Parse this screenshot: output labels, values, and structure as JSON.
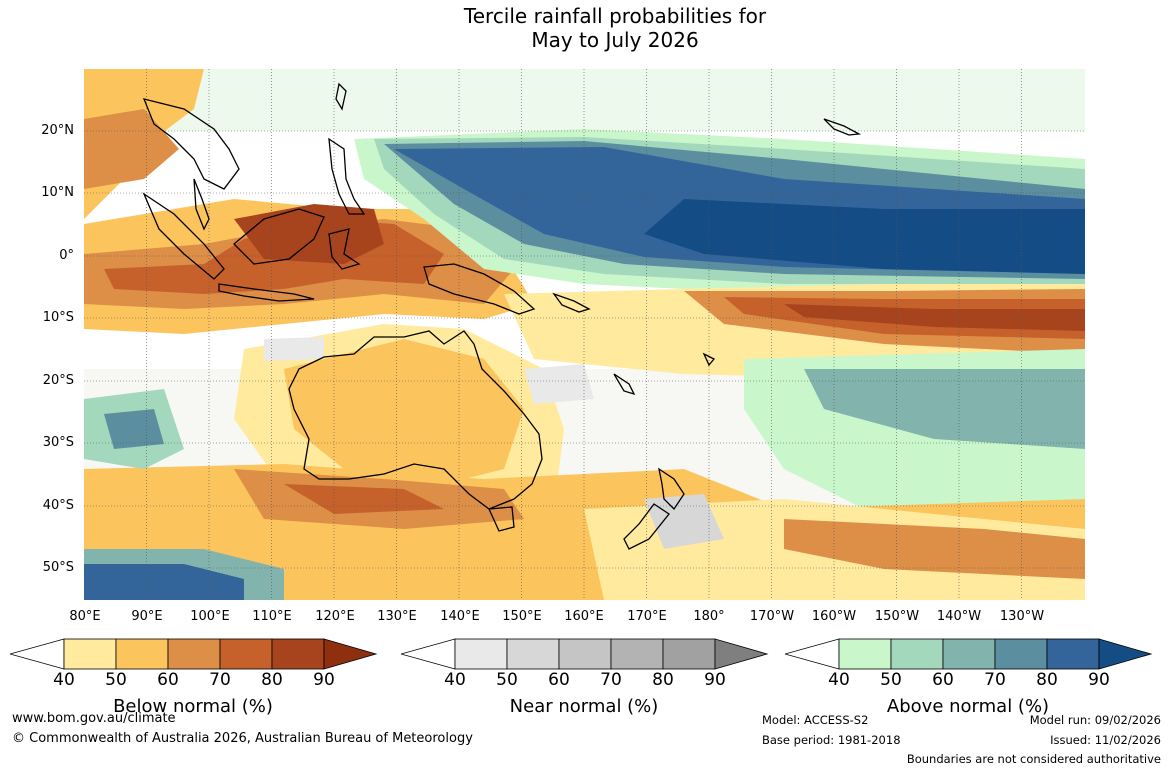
{
  "title": {
    "line1": "Tercile rainfall probabilities for",
    "line2": "May to July 2026"
  },
  "axes": {
    "lat_labels": [
      "20°N",
      "10°N",
      "0°",
      "10°S",
      "20°S",
      "30°S",
      "40°S",
      "50°S"
    ],
    "lon_labels": [
      "80°E",
      "90°E",
      "100°E",
      "110°E",
      "120°E",
      "130°E",
      "140°E",
      "150°E",
      "160°E",
      "170°E",
      "180°",
      "170°W",
      "160°W",
      "150°W",
      "140°W",
      "130°W"
    ]
  },
  "colorbars": [
    {
      "title": "Below normal (%)",
      "ticks": [
        "40",
        "50",
        "60",
        "70",
        "80",
        "90"
      ],
      "colors": [
        "#ffffff",
        "#ffea9e",
        "#fcc45c",
        "#dd8f47",
        "#c6612c",
        "#a8441d",
        "#8e2f10"
      ]
    },
    {
      "title": "Near normal (%)",
      "ticks": [
        "40",
        "50",
        "60",
        "70",
        "80",
        "90"
      ],
      "colors": [
        "#ffffff",
        "#e9e9e9",
        "#d7d7d7",
        "#c5c5c5",
        "#b3b3b3",
        "#a1a1a1",
        "#7f7f7f"
      ]
    },
    {
      "title": "Above normal (%)",
      "ticks": [
        "40",
        "50",
        "60",
        "70",
        "80",
        "90"
      ],
      "colors": [
        "#ffffff",
        "#c9f7cb",
        "#a4d8bd",
        "#82b4ad",
        "#5b8fa0",
        "#33659b",
        "#144c86"
      ]
    }
  ],
  "footer": {
    "website": "www.bom.gov.au/climate",
    "copyright": "© Commonwealth of Australia 2026, Australian Bureau of Meteorology",
    "model": "Model: ACCESS-S2",
    "base_period": "Base period: 1981-2018",
    "model_run": "Model run: 09/02/2026",
    "issued": "Issued: 11/02/2026",
    "disclaimer": "Boundaries are not considered authoritative"
  }
}
